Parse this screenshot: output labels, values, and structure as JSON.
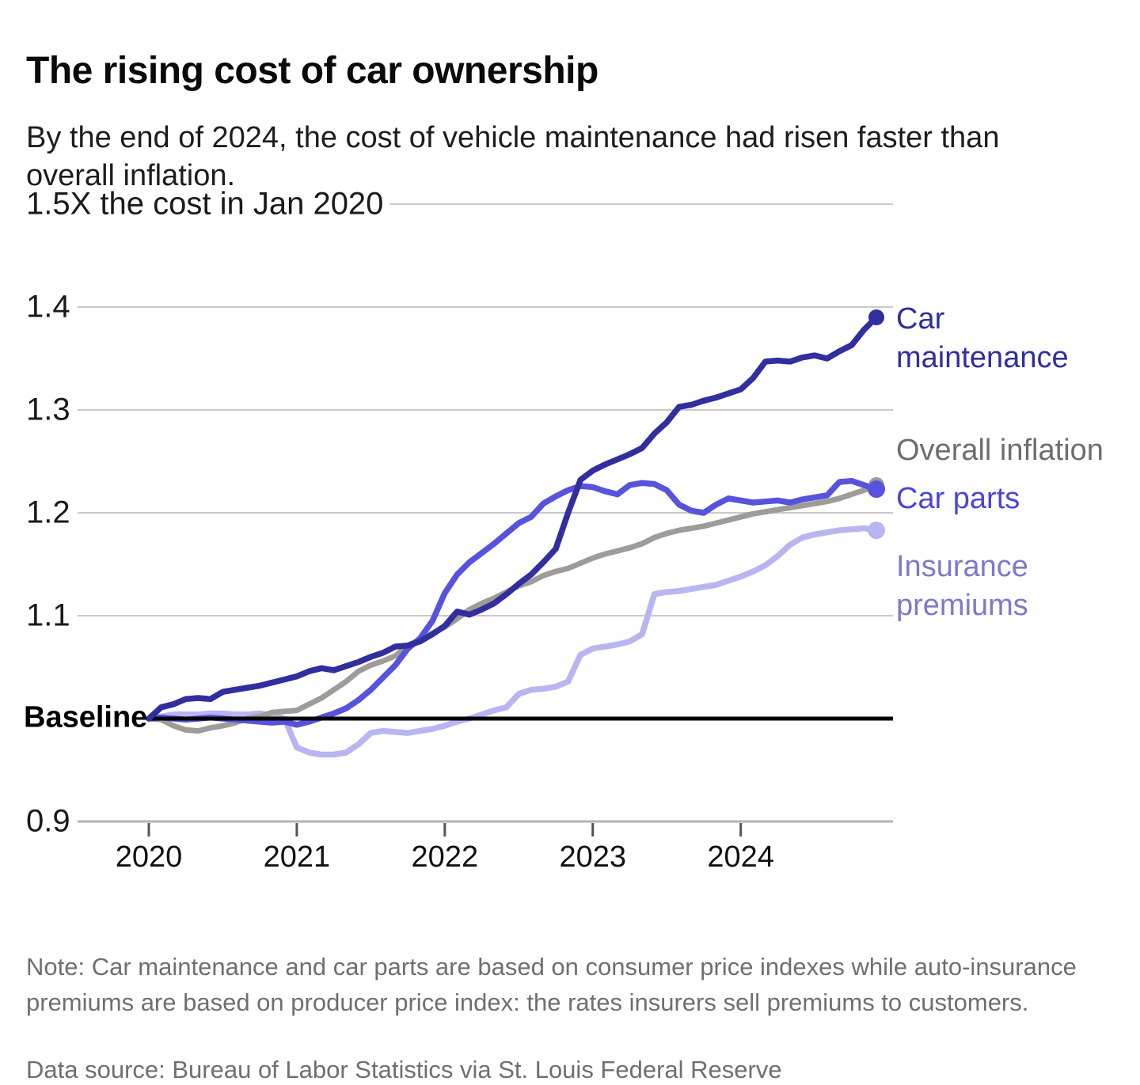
{
  "header": {
    "title": "The rising cost of car ownership",
    "subtitle": "By the end of 2024, the cost of vehicle maintenance had risen faster than overall inflation."
  },
  "axes": {
    "y_top_label": "1.5X the cost in Jan 2020",
    "y_top_value": 1.5,
    "y_ticks": [
      {
        "value": 1.4,
        "label": "1.4"
      },
      {
        "value": 1.3,
        "label": "1.3"
      },
      {
        "value": 1.2,
        "label": "1.2"
      },
      {
        "value": 1.1,
        "label": "1.1"
      },
      {
        "value": 0.9,
        "label": "0.9"
      }
    ],
    "baseline_label": "Baseline",
    "baseline_value": 1.0,
    "x_ticks": [
      "2020",
      "2021",
      "2022",
      "2023",
      "2024"
    ]
  },
  "chart_data": {
    "type": "line",
    "title": "The rising cost of car ownership",
    "x_unit": "monthly, Jan 2020 through Dec 2024",
    "xlabel": "",
    "ylabel": "Multiple of the cost in Jan 2020",
    "ylim": [
      0.9,
      1.5
    ],
    "baseline": 1.0,
    "grid": "horizontal",
    "legend_position": "right-of-line-ends",
    "series": [
      {
        "name": "Car maintenance",
        "color": "#312e9e",
        "label_color": "#312e9e",
        "end_value": 1.39,
        "values": [
          1.0,
          1.011,
          1.014,
          1.019,
          1.02,
          1.019,
          1.026,
          1.028,
          1.03,
          1.032,
          1.035,
          1.038,
          1.041,
          1.046,
          1.049,
          1.047,
          1.051,
          1.055,
          1.06,
          1.064,
          1.07,
          1.071,
          1.075,
          1.082,
          1.09,
          1.104,
          1.101,
          1.106,
          1.112,
          1.121,
          1.131,
          1.14,
          1.152,
          1.165,
          1.2,
          1.232,
          1.241,
          1.247,
          1.252,
          1.257,
          1.263,
          1.277,
          1.288,
          1.303,
          1.305,
          1.309,
          1.312,
          1.316,
          1.32,
          1.331,
          1.347,
          1.348,
          1.347,
          1.351,
          1.353,
          1.35,
          1.357,
          1.363,
          1.378,
          1.39
        ]
      },
      {
        "name": "Overall inflation",
        "color": "#9e9c98",
        "label_color": "#6d6d6d",
        "end_value": 1.23,
        "values": [
          1.0,
          0.999,
          0.993,
          0.989,
          0.988,
          0.991,
          0.993,
          0.996,
          1.0,
          1.002,
          1.006,
          1.007,
          1.008,
          1.014,
          1.02,
          1.028,
          1.036,
          1.046,
          1.052,
          1.056,
          1.061,
          1.071,
          1.077,
          1.083,
          1.089,
          1.097,
          1.106,
          1.112,
          1.117,
          1.123,
          1.129,
          1.133,
          1.139,
          1.143,
          1.146,
          1.151,
          1.156,
          1.16,
          1.163,
          1.166,
          1.17,
          1.176,
          1.18,
          1.183,
          1.185,
          1.187,
          1.19,
          1.193,
          1.196,
          1.199,
          1.201,
          1.203,
          1.205,
          1.207,
          1.209,
          1.211,
          1.214,
          1.218,
          1.222,
          1.227
        ]
      },
      {
        "name": "Car parts",
        "color": "#5753dc",
        "label_color": "#4b44dc",
        "end_value": 1.22,
        "values": [
          1.0,
          1.001,
          1.0,
          0.999,
          1.0,
          1.001,
          1.0,
          0.999,
          0.998,
          0.997,
          0.996,
          0.997,
          0.994,
          0.997,
          1.001,
          1.005,
          1.01,
          1.018,
          1.028,
          1.04,
          1.052,
          1.068,
          1.078,
          1.095,
          1.122,
          1.14,
          1.152,
          1.161,
          1.17,
          1.18,
          1.19,
          1.196,
          1.209,
          1.216,
          1.222,
          1.226,
          1.225,
          1.221,
          1.218,
          1.227,
          1.229,
          1.228,
          1.222,
          1.208,
          1.202,
          1.2,
          1.208,
          1.214,
          1.212,
          1.21,
          1.211,
          1.212,
          1.21,
          1.213,
          1.215,
          1.217,
          1.23,
          1.231,
          1.227,
          1.223
        ]
      },
      {
        "name": "Insurance premiums",
        "color": "#b8b5f0",
        "label_color": "#7e79c8",
        "end_value": 1.18,
        "values": [
          1.0,
          1.002,
          1.004,
          1.004,
          1.004,
          1.005,
          1.005,
          1.004,
          1.004,
          1.005,
          1.003,
          1.0,
          0.972,
          0.967,
          0.965,
          0.965,
          0.967,
          0.975,
          0.986,
          0.988,
          0.987,
          0.986,
          0.988,
          0.99,
          0.993,
          0.997,
          1.0,
          1.004,
          1.008,
          1.011,
          1.024,
          1.028,
          1.029,
          1.031,
          1.036,
          1.062,
          1.068,
          1.07,
          1.072,
          1.075,
          1.082,
          1.121,
          1.123,
          1.124,
          1.126,
          1.128,
          1.13,
          1.134,
          1.138,
          1.143,
          1.149,
          1.158,
          1.169,
          1.176,
          1.179,
          1.181,
          1.183,
          1.184,
          1.185,
          1.183
        ]
      }
    ]
  },
  "notes": {
    "note": "Note: Car maintenance and car parts are based on consumer price indexes while auto-insurance premiums are based on producer price index: the rates insurers sell premiums to customers.",
    "source": "Data source: Bureau of Labor Statistics via St. Louis Federal Reserve"
  },
  "colors": {
    "gridline": "#c9c9c9",
    "axis_line": "#b3b3b3",
    "tick_mark": "#555555",
    "baseline": "#000000"
  }
}
